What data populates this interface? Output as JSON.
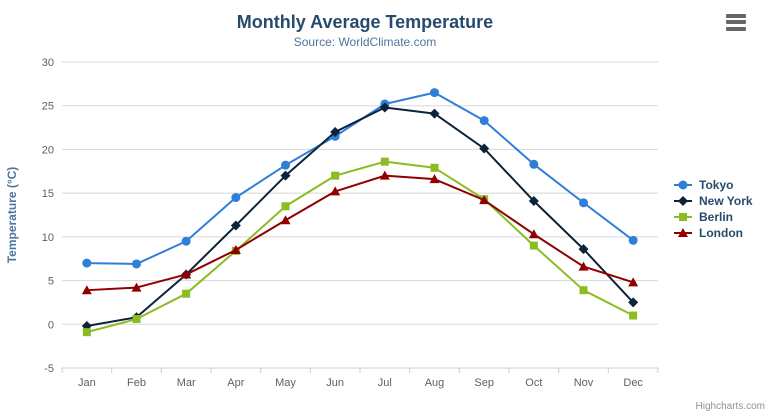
{
  "chart_data": {
    "type": "line",
    "title": "Monthly Average Temperature",
    "subtitle": "Source: WorldClimate.com",
    "categories": [
      "Jan",
      "Feb",
      "Mar",
      "Apr",
      "May",
      "Jun",
      "Jul",
      "Aug",
      "Sep",
      "Oct",
      "Nov",
      "Dec"
    ],
    "xlabel": "",
    "ylabel": "Temperature (°C)",
    "ylim": [
      -5,
      30
    ],
    "yticks": [
      -5,
      0,
      5,
      10,
      15,
      20,
      25,
      30
    ],
    "grid": true,
    "legend_position": "right",
    "series": [
      {
        "name": "Tokyo",
        "color": "#2f7ed8",
        "marker": "circle",
        "values": [
          7.0,
          6.9,
          9.5,
          14.5,
          18.2,
          21.5,
          25.2,
          26.5,
          23.3,
          18.3,
          13.9,
          9.6
        ]
      },
      {
        "name": "New York",
        "color": "#0d233a",
        "marker": "diamond",
        "values": [
          -0.2,
          0.8,
          5.7,
          11.3,
          17.0,
          22.0,
          24.8,
          24.1,
          20.1,
          14.1,
          8.6,
          2.5
        ]
      },
      {
        "name": "Berlin",
        "color": "#8bbc21",
        "marker": "square",
        "values": [
          -0.9,
          0.6,
          3.5,
          8.4,
          13.5,
          17.0,
          18.6,
          17.9,
          14.3,
          9.0,
          3.9,
          1.0
        ]
      },
      {
        "name": "London",
        "color": "#910000",
        "marker": "triangle",
        "values": [
          3.9,
          4.2,
          5.7,
          8.5,
          11.9,
          15.2,
          17.0,
          16.6,
          14.2,
          10.3,
          6.6,
          4.8
        ]
      }
    ],
    "colors": {
      "title": "#274b6d",
      "subtitle": "#4d759e",
      "axis_labels": "#606060",
      "axis_title": "#4d759e",
      "gridline": "#d8d8d8",
      "axis_line": "#c0d0e0"
    }
  },
  "export_menu": {
    "icon": "hamburger-icon"
  },
  "credits": {
    "label": "Highcharts.com"
  }
}
